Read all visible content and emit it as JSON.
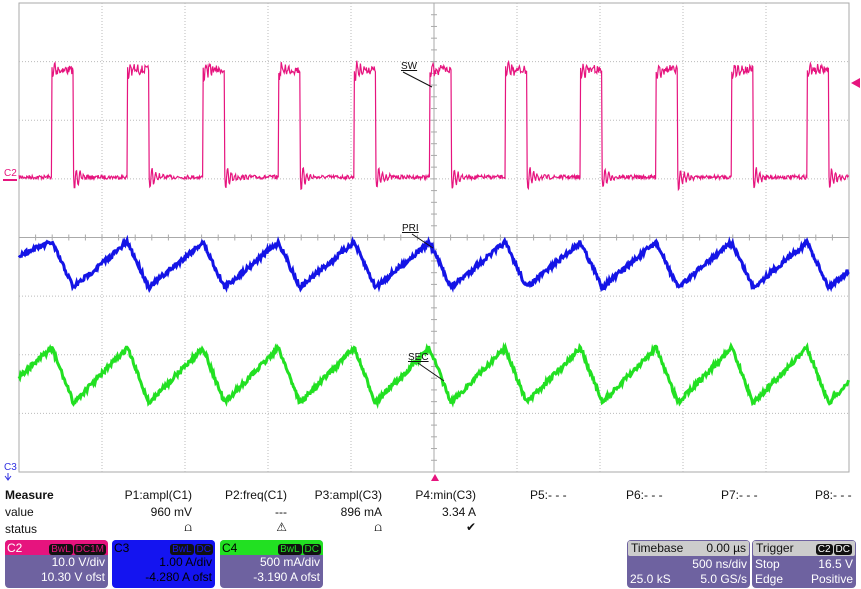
{
  "chart_data": {
    "type": "line",
    "xlabel": "",
    "ylabel": "",
    "xlim_ns": [
      -2500,
      2500
    ],
    "grid": true,
    "divisions": {
      "x": 10,
      "y": 8
    },
    "series": [
      {
        "name": "SW",
        "channel": "C2",
        "color": "#e6147e",
        "units": "V",
        "volts_per_div": 10.0,
        "offset": 10.3,
        "low": 0,
        "high": 18.3,
        "rise_times_ns": [
          -2302,
          -1847,
          -1392,
          -937,
          -482,
          -27,
          428,
          883,
          1338,
          1793,
          2248
        ],
        "fall_times_ns": [
          -2172,
          -1717,
          -1262,
          -807,
          -352,
          103,
          558,
          1013,
          1468,
          1923,
          2378
        ]
      },
      {
        "name": "PRI",
        "channel": "C3",
        "color": "#1414e6",
        "units": "A",
        "amps_per_div": 1.0,
        "offset": -4.28,
        "start": 3.98,
        "peak": 4.2,
        "valley": 3.43
      },
      {
        "name": "SEC",
        "channel": "C4",
        "color": "#22e022",
        "units": "A",
        "amps_per_div": 0.5,
        "offset": -3.19,
        "start": 2.0,
        "peak": 2.25,
        "valley": 1.78
      }
    ],
    "trigger_level": 16.5
  },
  "labels": {
    "sw": "SW",
    "pri": "PRI",
    "sec": "SEC",
    "c2_marker": "C2",
    "c3_marker": "C3"
  },
  "measure": {
    "header": "Measure",
    "value_label": "value",
    "status_label": "status",
    "params": [
      {
        "name": "P1:ampl(C1)",
        "value": "960 mV",
        "status": "⩍"
      },
      {
        "name": "P2:freq(C1)",
        "value": "---",
        "status": "⚠"
      },
      {
        "name": "P3:ampl(C3)",
        "value": "896 mA",
        "status": "⩍"
      },
      {
        "name": "P4:min(C3)",
        "value": "3.34 A",
        "status": "✔"
      },
      {
        "name": "P5:- - -"
      },
      {
        "name": "P6:- - -"
      },
      {
        "name": "P7:- - -"
      },
      {
        "name": "P8:- - -"
      }
    ]
  },
  "channels": [
    {
      "name": "C2",
      "bw": "BwL",
      "coupling": "DC1M",
      "scale": "10.0 V/div",
      "offset": "10.30 V ofst",
      "color": "#e6147e"
    },
    {
      "name": "C3",
      "bw": "BwL",
      "coupling": "DC",
      "scale": "1.00 A/div",
      "offset": "-4.280 A ofst",
      "color": "#1414f0"
    },
    {
      "name": "C4",
      "bw": "BwL",
      "coupling": "DC",
      "scale": "500 mA/div",
      "offset": "-3.190 A ofst",
      "color": "#22e022"
    }
  ],
  "timebase": {
    "label": "Timebase",
    "delay": "0.00 µs",
    "scale": "500 ns/div",
    "samples": "25.0 kS",
    "rate": "5.0 GS/s"
  },
  "trigger": {
    "label": "Trigger",
    "source": "C2",
    "coupling": "DC",
    "mode": "Stop",
    "level": "16.5 V",
    "type": "Edge",
    "slope": "Positive"
  }
}
